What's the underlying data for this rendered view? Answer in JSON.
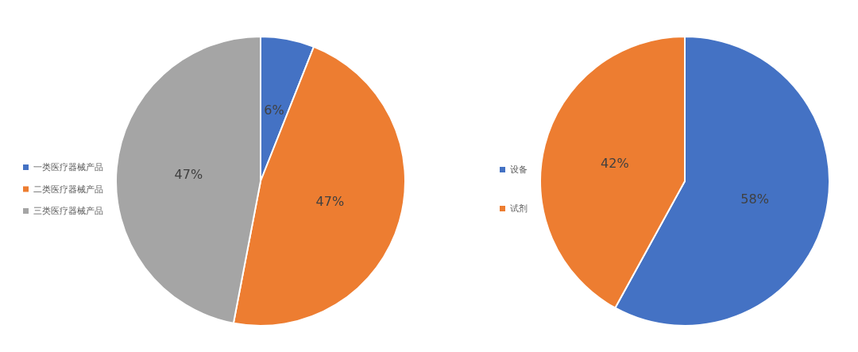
{
  "chart_data": [
    {
      "type": "pie",
      "categories": [
        "一类医疗器械产品",
        "二类医疗器械产品",
        "三类医疗器械产品"
      ],
      "values": [
        6,
        47,
        47
      ],
      "colors": [
        "#4472c4",
        "#ed7d31",
        "#a5a5a5"
      ],
      "value_labels": [
        "6%",
        "47%",
        "47%"
      ],
      "legend": "left"
    },
    {
      "type": "pie",
      "categories": [
        "设备",
        "试剂"
      ],
      "values": [
        58,
        42
      ],
      "colors": [
        "#4472c4",
        "#ed7d31"
      ],
      "value_labels": [
        "58%",
        "42%"
      ],
      "legend": "left"
    }
  ]
}
